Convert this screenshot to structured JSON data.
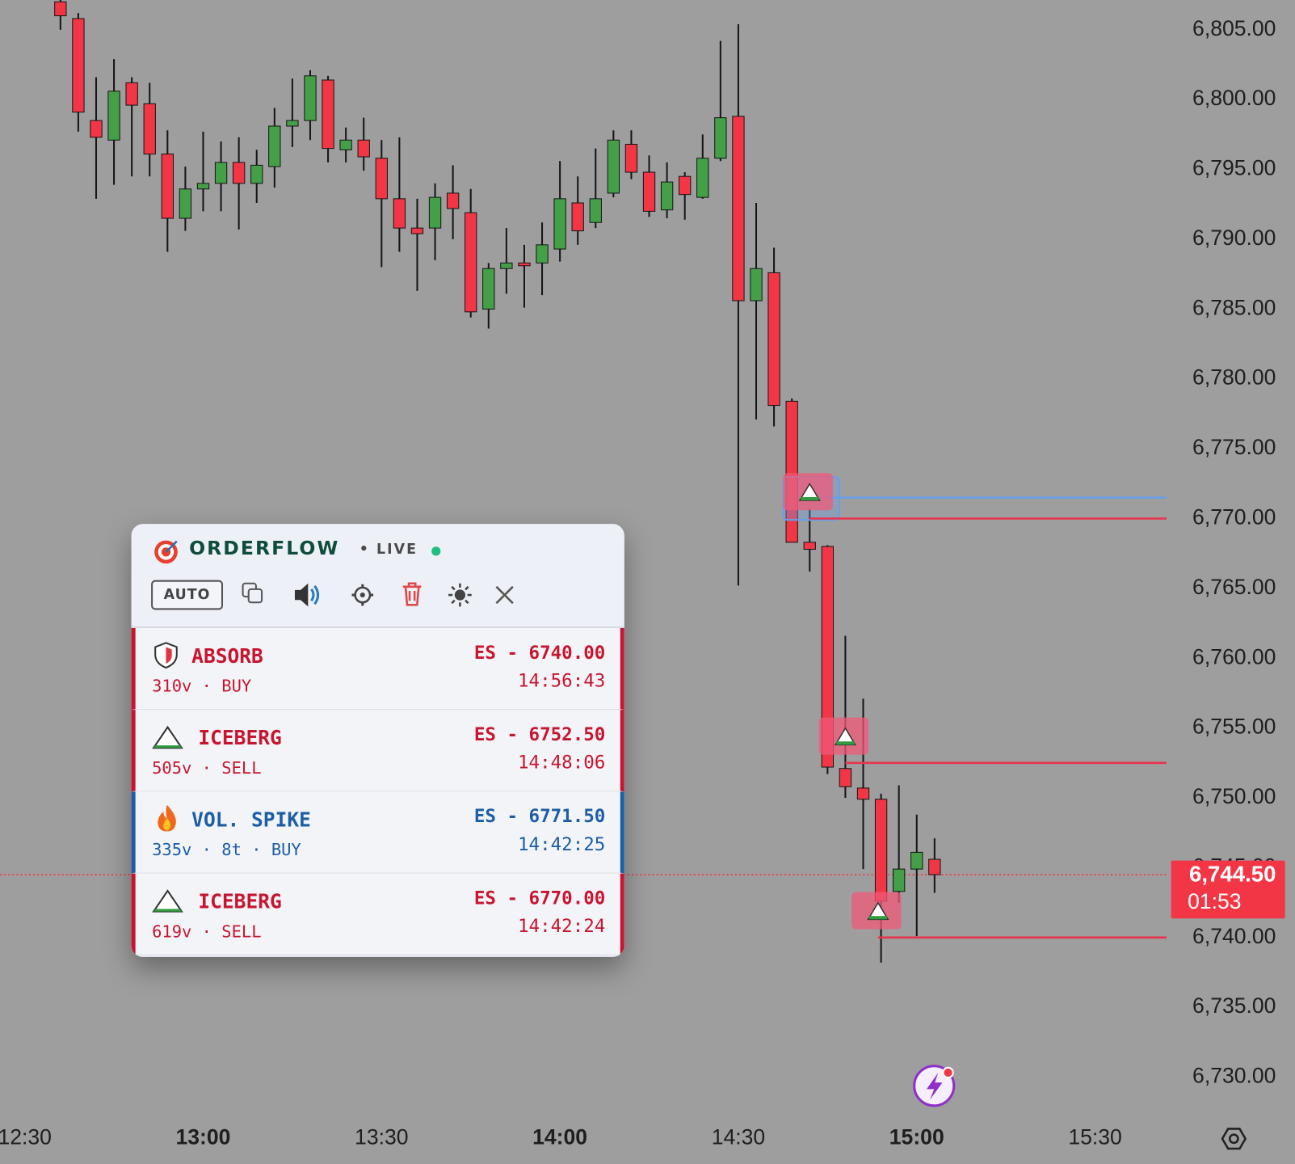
{
  "chart_data": {
    "type": "candlestick",
    "x": [
      756,
      759,
      762,
      765,
      768,
      771,
      774,
      777,
      780,
      783,
      786,
      789,
      792,
      795,
      798,
      801,
      804,
      807,
      810,
      813,
      816,
      819,
      822,
      825,
      828,
      831,
      834,
      837,
      840,
      843,
      846,
      849,
      852,
      855,
      858,
      861,
      864,
      867,
      870,
      873,
      876,
      879,
      882,
      885,
      888,
      891,
      894,
      897,
      900,
      903
    ],
    "open": [
      6807,
      6805.8,
      6798.5,
      6797.1,
      6801.2,
      6799.7,
      6796.1,
      6791.5,
      6793.6,
      6794,
      6795.5,
      6794,
      6795.2,
      6798.1,
      6798.5,
      6801.4,
      6796.4,
      6797.1,
      6795.8,
      6792.9,
      6790.8,
      6790.8,
      6793.3,
      6791.9,
      6785,
      6787.9,
      6788.3,
      6788.3,
      6789.3,
      6792.6,
      6791.2,
      6793.3,
      6796.8,
      6794.8,
      6792.1,
      6794.5,
      6793,
      6795.8,
      6798.8,
      6785.6,
      6787.6,
      6778.4,
      6768.3,
      6768,
      6752.1,
      6750.7,
      6749.9,
      6743.3,
      6744.9,
      6745.6
    ],
    "high": [
      6807.5,
      6806.2,
      6801.6,
      6802.9,
      6801.6,
      6801.2,
      6797.8,
      6795.2,
      6797.7,
      6797,
      6797.3,
      6796.4,
      6799.4,
      6801.5,
      6802.1,
      6801.7,
      6798,
      6798.7,
      6797.1,
      6797.3,
      6792.9,
      6794,
      6795.3,
      6793.6,
      6788.3,
      6790.8,
      6789.6,
      6791.2,
      6795.6,
      6794.5,
      6796.5,
      6797.8,
      6797.8,
      6796,
      6795.5,
      6794.8,
      6797.5,
      6804.2,
      6805.4,
      6792.6,
      6789.4,
      6778.6,
      6770.7,
      6768.1,
      6761.6,
      6757.1,
      6750.3,
      6750.9,
      6748.8,
      6747.1
    ],
    "low": [
      6805,
      6797.7,
      6792.9,
      6793.9,
      6794.5,
      6794.5,
      6789.1,
      6790.6,
      6792,
      6792,
      6790.7,
      6792.6,
      6793.7,
      6796.6,
      6797.1,
      6795.5,
      6795.5,
      6794.9,
      6788,
      6789.1,
      6786.3,
      6788.5,
      6790,
      6784.4,
      6783.6,
      6786.1,
      6785.1,
      6786,
      6788.4,
      6789.6,
      6790.8,
      6793,
      6794.3,
      6791.6,
      6791.5,
      6791.4,
      6792.9,
      6795.6,
      6765.2,
      6777.1,
      6776.6,
      6768.3,
      6766.2,
      6751.7,
      6750,
      6744.9,
      6738.2,
      6742.5,
      6740.1,
      6743.2
    ],
    "close": [
      6806,
      6799.1,
      6797.3,
      6800.6,
      6799.6,
      6796.1,
      6791.5,
      6793.6,
      6794,
      6795.5,
      6794,
      6795.3,
      6798.1,
      6798.5,
      6801.7,
      6796.5,
      6797.1,
      6795.9,
      6792.9,
      6790.8,
      6790.4,
      6793,
      6792.2,
      6784.8,
      6787.9,
      6788.3,
      6788.1,
      6789.6,
      6792.9,
      6790.6,
      6792.9,
      6797.1,
      6794.8,
      6792,
      6794.1,
      6793.2,
      6795.8,
      6798.7,
      6785.6,
      6787.9,
      6778.1,
      6768.3,
      6767.8,
      6752.2,
      6750.8,
      6749.9,
      6742.6,
      6744.9,
      6746.1,
      6744.5
    ],
    "up_color": "#43a047",
    "down_color": "#f23645",
    "xlim": [
      746,
      942
    ],
    "xticks": [
      {
        "value": 750,
        "label": "12:30"
      },
      {
        "value": 780,
        "label": "13:00"
      },
      {
        "value": 810,
        "label": "13:30"
      },
      {
        "value": 840,
        "label": "14:00"
      },
      {
        "value": 870,
        "label": "14:30"
      },
      {
        "value": 900,
        "label": "15:00"
      },
      {
        "value": 930,
        "label": "15:30"
      }
    ],
    "ylim": [
      6727,
      6807
    ],
    "yticks": [
      {
        "value": 6730,
        "label": "6,730.00"
      },
      {
        "value": 6735,
        "label": "6,735.00"
      },
      {
        "value": 6740,
        "label": "6,740.00"
      },
      {
        "value": 6745,
        "label": "6,745.00"
      },
      {
        "value": 6750,
        "label": "6,750.00"
      },
      {
        "value": 6755,
        "label": "6,755.00"
      },
      {
        "value": 6760,
        "label": "6,760.00"
      },
      {
        "value": 6765,
        "label": "6,765.00"
      },
      {
        "value": 6770,
        "label": "6,770.00"
      },
      {
        "value": 6775,
        "label": "6,775.00"
      },
      {
        "value": 6780,
        "label": "6,780.00"
      },
      {
        "value": 6785,
        "label": "6,785.00"
      },
      {
        "value": 6790,
        "label": "6,790.00"
      },
      {
        "value": 6795,
        "label": "6,795.00"
      },
      {
        "value": 6800,
        "label": "6,800.00"
      },
      {
        "value": 6805,
        "label": "6,805.00"
      }
    ],
    "grid": false,
    "levels": [
      {
        "value": 6771.5,
        "x": 882,
        "color": "#6a9ee8"
      },
      {
        "value": 6770,
        "x": 882,
        "color": "#e8334d"
      },
      {
        "value": 6752.5,
        "x": 888,
        "color": "#e8334d"
      },
      {
        "value": 6740,
        "x": 893.5,
        "color": "#e8334d"
      }
    ],
    "last_price": {
      "value": 6744.5,
      "label": "6,744.50"
    },
    "countdown": "01:53",
    "last_color": "#f23645"
  },
  "panel": {
    "title": "ORDERFLOW",
    "status": "• LIVE",
    "auto": "AUTO",
    "alerts": [
      {
        "type": "ABSORB",
        "detail": "310v · BUY",
        "price": "ES - 6740.00",
        "time": "14:56:43",
        "color": "#c8152f"
      },
      {
        "type": "ICEBERG",
        "detail": "505v · SELL",
        "price": "ES - 6752.50",
        "time": "14:48:06",
        "color": "#c8152f"
      },
      {
        "type": "VOL. SPIKE",
        "detail": "335v · 8t · BUY",
        "price": "ES - 6771.50",
        "time": "14:42:25",
        "color": "#1b5ea6"
      },
      {
        "type": "ICEBERG",
        "detail": "619v · SELL",
        "price": "ES - 6770.00",
        "time": "14:42:24",
        "color": "#c8152f"
      }
    ]
  }
}
